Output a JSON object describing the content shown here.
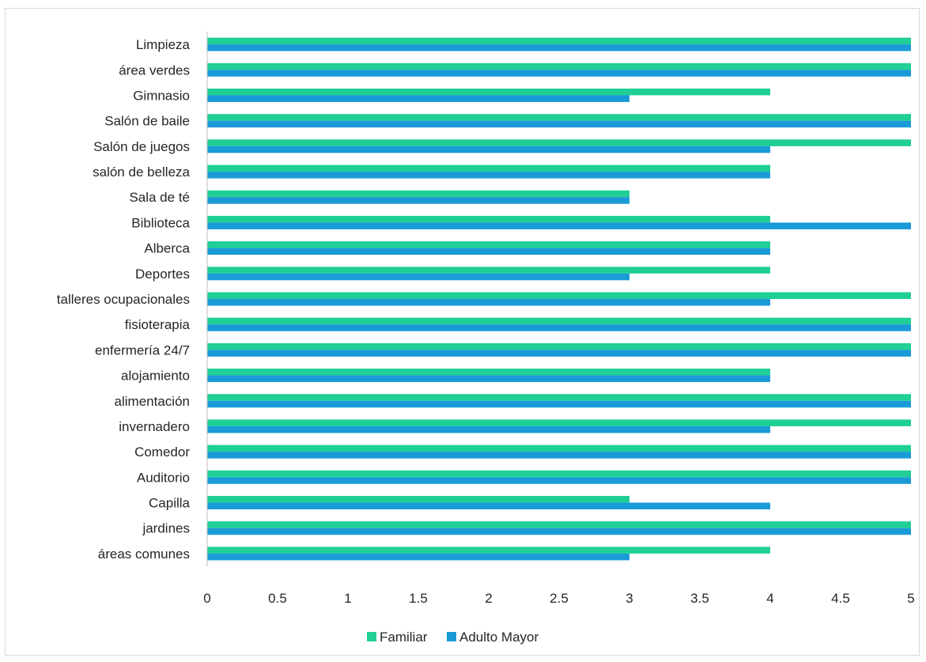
{
  "chart_data": {
    "type": "bar",
    "orientation": "horizontal",
    "categories": [
      "Limpieza",
      "área verdes",
      "Gimnasio",
      "Salón de baile",
      "Salón de juegos",
      "salón de belleza",
      "Sala de té",
      "Biblioteca",
      "Alberca",
      "Deportes",
      "talleres ocupacionales",
      "fisioterapia",
      "enfermería 24/7",
      "alojamiento",
      "alimentación",
      "invernadero",
      "Comedor",
      "Auditorio",
      "Capilla",
      "jardines",
      "áreas comunes"
    ],
    "series": [
      {
        "name": "Familiar",
        "color": "#1fcf95",
        "values": [
          5,
          5,
          4,
          5,
          5,
          4,
          3,
          4,
          4,
          4,
          5,
          5,
          5,
          4,
          5,
          5,
          5,
          5,
          3,
          5,
          4
        ]
      },
      {
        "name": "Adulto Mayor",
        "color": "#1a9bd7",
        "values": [
          5,
          5,
          3,
          5,
          4,
          4,
          3,
          5,
          4,
          3,
          4,
          5,
          5,
          4,
          5,
          4,
          5,
          5,
          4,
          5,
          3
        ]
      }
    ],
    "xlim": [
      0,
      5
    ],
    "xticks": [
      "0",
      "0.5",
      "1",
      "1.5",
      "2",
      "2.5",
      "3",
      "3.5",
      "4",
      "4.5",
      "5"
    ],
    "grid": false,
    "legend_position": "bottom",
    "title": "",
    "xlabel": "",
    "ylabel": ""
  }
}
